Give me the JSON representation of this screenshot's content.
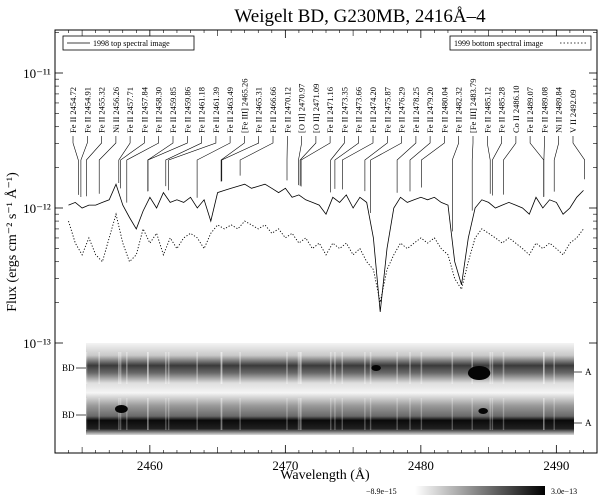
{
  "chart_data": {
    "type": "line",
    "title": "Weigelt BD, G230MB, 2416Å–4",
    "xlabel": "Wavelength (Å)",
    "ylabel": "Flux (ergs cm⁻² s⁻¹ Å⁻¹)",
    "xlim": [
      2453,
      2493
    ],
    "xscale": "linear",
    "yscale": "log",
    "ylim": [
      1e-13,
      2e-11
    ],
    "x_ticks": [
      2460,
      2470,
      2480,
      2490
    ],
    "y_tick_labels": [
      "10⁻¹³",
      "10⁻¹²",
      "10⁻¹¹"
    ],
    "y_tick_values": [
      1e-13,
      1e-12,
      1e-11
    ],
    "legend": [
      "1998 top spectral image",
      "1999 bottom spectral image"
    ],
    "series": [
      {
        "name": "1998 top spectral image",
        "style": "solid",
        "x": [
          2454.0,
          2454.5,
          2455.0,
          2455.5,
          2456.0,
          2456.5,
          2457.0,
          2457.5,
          2458.0,
          2458.5,
          2459.0,
          2459.5,
          2460.0,
          2460.5,
          2461.0,
          2461.5,
          2462.0,
          2462.5,
          2463.0,
          2463.5,
          2464.0,
          2464.5,
          2465.0,
          2465.5,
          2466.0,
          2466.5,
          2467.0,
          2467.5,
          2468.0,
          2468.5,
          2469.0,
          2469.5,
          2470.0,
          2470.5,
          2471.0,
          2471.5,
          2472.0,
          2472.5,
          2473.0,
          2473.5,
          2474.0,
          2474.5,
          2475.0,
          2475.5,
          2476.0,
          2476.5,
          2477.0,
          2477.5,
          2478.0,
          2478.5,
          2479.0,
          2479.5,
          2480.0,
          2480.5,
          2481.0,
          2481.5,
          2482.0,
          2482.5,
          2483.0,
          2483.5,
          2484.0,
          2484.5,
          2485.0,
          2485.5,
          2486.0,
          2486.5,
          2487.0,
          2487.5,
          2488.0,
          2488.5,
          2489.0,
          2489.5,
          2490.0,
          2490.5,
          2491.0,
          2491.5,
          2492.0
        ],
        "y": [
          1.05e-12,
          1.1e-12,
          1e-12,
          1.05e-12,
          1.05e-12,
          1.1e-12,
          1.15e-12,
          1.5e-12,
          1.05e-12,
          8.5e-13,
          7e-13,
          9.5e-13,
          1.2e-12,
          1e-12,
          1.3e-12,
          1.1e-12,
          1.15e-12,
          1.1e-12,
          1.2e-12,
          1e-12,
          1.15e-12,
          8e-13,
          1.3e-12,
          1.35e-12,
          1.4e-12,
          1.45e-12,
          1.5e-12,
          1.4e-12,
          1.45e-12,
          1.5e-12,
          1.4e-12,
          1.3e-12,
          1.4e-12,
          1.2e-12,
          1.25e-12,
          1.15e-12,
          1.1e-12,
          1.05e-12,
          9e-13,
          1.2e-12,
          1.1e-12,
          1.25e-12,
          1e-12,
          1.2e-12,
          1.1e-12,
          6e-13,
          1.7e-13,
          5e-13,
          1e-12,
          1.2e-12,
          1.1e-12,
          1.15e-12,
          1.2e-12,
          1.15e-12,
          1.2e-12,
          1.1e-12,
          1.05e-12,
          4e-13,
          2.7e-13,
          6e-13,
          1e-12,
          1.15e-12,
          1.1e-12,
          1e-12,
          1.05e-12,
          1.1e-12,
          1.05e-12,
          1e-12,
          9e-13,
          1.2e-12,
          1e-12,
          1.15e-12,
          1.1e-12,
          9e-13,
          1e-12,
          1.2e-12,
          1.35e-12
        ]
      },
      {
        "name": "1999 bottom spectral image",
        "style": "dotted",
        "x": [
          2454.0,
          2454.5,
          2455.0,
          2455.5,
          2456.0,
          2456.5,
          2457.0,
          2457.5,
          2458.0,
          2458.5,
          2459.0,
          2459.5,
          2460.0,
          2460.5,
          2461.0,
          2461.5,
          2462.0,
          2462.5,
          2463.0,
          2463.5,
          2464.0,
          2464.5,
          2465.0,
          2465.5,
          2466.0,
          2466.5,
          2467.0,
          2467.5,
          2468.0,
          2468.5,
          2469.0,
          2469.5,
          2470.0,
          2470.5,
          2471.0,
          2471.5,
          2472.0,
          2472.5,
          2473.0,
          2473.5,
          2474.0,
          2474.5,
          2475.0,
          2475.5,
          2476.0,
          2476.5,
          2477.0,
          2477.5,
          2478.0,
          2478.5,
          2479.0,
          2479.5,
          2480.0,
          2480.5,
          2481.0,
          2481.5,
          2482.0,
          2482.5,
          2483.0,
          2483.5,
          2484.0,
          2484.5,
          2485.0,
          2485.5,
          2486.0,
          2486.5,
          2487.0,
          2487.5,
          2488.0,
          2488.5,
          2489.0,
          2489.5,
          2490.0,
          2490.5,
          2491.0,
          2491.5,
          2492.0
        ],
        "y": [
          8e-13,
          5.5e-13,
          4.5e-13,
          6e-13,
          4.5e-13,
          4e-13,
          6e-13,
          9e-13,
          5.5e-13,
          4e-13,
          4.5e-13,
          7e-13,
          5.5e-13,
          6.5e-13,
          4.5e-13,
          6e-13,
          5e-13,
          6e-13,
          6.5e-13,
          6e-13,
          5e-13,
          6.5e-13,
          7.5e-13,
          7e-13,
          7.5e-13,
          7e-13,
          8e-13,
          7.5e-13,
          7e-13,
          7.5e-13,
          6.5e-13,
          7e-13,
          6e-13,
          6.5e-13,
          5.5e-13,
          6e-13,
          5e-13,
          5.5e-13,
          4.5e-13,
          5.5e-13,
          5e-13,
          5.5e-13,
          4.5e-13,
          5e-13,
          4e-13,
          3.5e-13,
          2e-13,
          3.5e-13,
          4.5e-13,
          5.5e-13,
          5e-13,
          5.5e-13,
          6e-13,
          5.5e-13,
          6e-13,
          5e-13,
          4.5e-13,
          3e-13,
          2.5e-13,
          4e-13,
          6e-13,
          7e-13,
          6.5e-13,
          6e-13,
          5.5e-13,
          6e-13,
          5.5e-13,
          5e-13,
          4.5e-13,
          5.5e-13,
          5e-13,
          5.5e-13,
          5e-13,
          4.5e-13,
          5.5e-13,
          6e-13,
          7e-13
        ]
      }
    ],
    "line_ids": [
      {
        "label": "Fe II 2454.72",
        "x": 2454.72
      },
      {
        "label": "Fe II 2454.91",
        "x": 2454.91
      },
      {
        "label": "Fe II 2455.32",
        "x": 2455.32
      },
      {
        "label": "Ni II 2456.26",
        "x": 2456.26
      },
      {
        "label": "Fe II 2457.71",
        "x": 2457.71
      },
      {
        "label": "Fe II 2457.84",
        "x": 2457.84
      },
      {
        "label": "Fe II 2458.30",
        "x": 2458.3
      },
      {
        "label": "Fe II 2459.85",
        "x": 2459.85
      },
      {
        "label": "Fe II 2459.86",
        "x": 2459.86
      },
      {
        "label": "Fe II 2461.18",
        "x": 2461.18
      },
      {
        "label": "Fe II 2461.39",
        "x": 2461.39
      },
      {
        "label": "Fe II 2463.49",
        "x": 2463.49
      },
      {
        "label": "[Fe III] 2465.26",
        "x": 2465.26
      },
      {
        "label": "Fe II 2465.31",
        "x": 2465.31
      },
      {
        "label": "Fe II 2466.66",
        "x": 2466.66
      },
      {
        "label": "Fe II 2470.12",
        "x": 2470.12
      },
      {
        "label": "[O II] 2470.97",
        "x": 2470.97
      },
      {
        "label": "[O II] 2471.09",
        "x": 2471.09
      },
      {
        "label": "Fe II 2471.16",
        "x": 2471.16
      },
      {
        "label": "Fe II 2473.35",
        "x": 2473.35
      },
      {
        "label": "Fe II 2473.66",
        "x": 2473.66
      },
      {
        "label": "Fe II 2474.20",
        "x": 2474.2
      },
      {
        "label": "Fe II 2475.87",
        "x": 2475.87
      },
      {
        "label": "Fe II 2476.29",
        "x": 2476.29
      },
      {
        "label": "Fe II 2478.25",
        "x": 2478.25
      },
      {
        "label": "Fe II 2479.20",
        "x": 2479.2
      },
      {
        "label": "Fe II 2480.04",
        "x": 2480.04
      },
      {
        "label": "Fe II 2482.32",
        "x": 2482.32
      },
      {
        "label": "[Fe III] 2483.79",
        "x": 2483.79
      },
      {
        "label": "Fe II 2485.12",
        "x": 2485.12
      },
      {
        "label": "Fe II 2485.28",
        "x": 2485.28
      },
      {
        "label": "Co II 2486.10",
        "x": 2486.1
      },
      {
        "label": "Fe II 2489.07",
        "x": 2489.07
      },
      {
        "label": "Fe II 2489.08",
        "x": 2489.08
      },
      {
        "label": "Ni II 2489.84",
        "x": 2489.84
      },
      {
        "label": "V II 2492.09",
        "x": 2492.09
      }
    ],
    "spectral_images": [
      {
        "left_label": "BD",
        "right_label": "A"
      },
      {
        "left_label": "BD",
        "right_label": "A"
      }
    ],
    "colorbar": {
      "min_label": "−8.9e−15",
      "max_label": "3.0e−13",
      "colors": [
        "#ffffff",
        "#000000"
      ]
    },
    "grid": false,
    "legend_placement": "top"
  }
}
